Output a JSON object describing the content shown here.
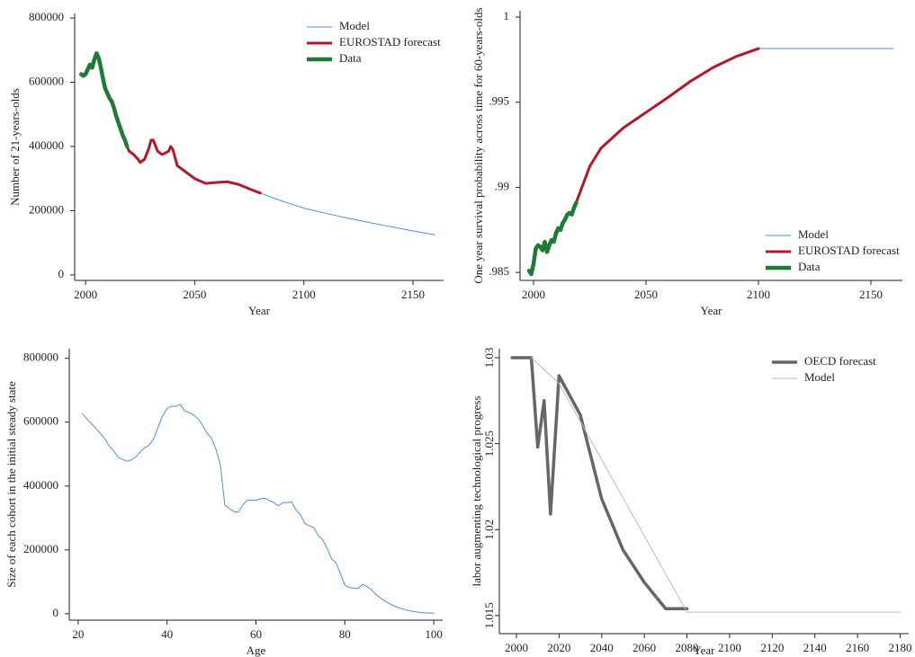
{
  "chart_data": [
    {
      "type": "line",
      "xlabel": "Year",
      "ylabel": "Number of 21-years-olds",
      "xlim": [
        1995,
        2164
      ],
      "ylim": [
        -17000,
        814000
      ],
      "xticks": [
        2000,
        2050,
        2100,
        2150
      ],
      "yticks": [
        0,
        200000,
        400000,
        600000,
        800000
      ],
      "legend": "upper right",
      "series": [
        {
          "name": "Model",
          "color": "#4f8fd6",
          "width": 1,
          "x": [
            2080,
            2090,
            2100,
            2110,
            2120,
            2130,
            2140,
            2150,
            2160
          ],
          "values": [
            255000,
            230000,
            208000,
            192000,
            177000,
            163000,
            150000,
            137000,
            125000
          ]
        },
        {
          "name": "EUROSTAD forecast",
          "color": "#b2182b",
          "width": 3,
          "x": [
            2019,
            2020,
            2022,
            2024,
            2025,
            2027,
            2029,
            2030,
            2031,
            2033,
            2035,
            2036,
            2038,
            2039,
            2040,
            2041,
            2042,
            2045,
            2050,
            2055,
            2060,
            2065,
            2070,
            2075,
            2080
          ],
          "values": [
            400000,
            385000,
            375000,
            360000,
            350000,
            360000,
            395000,
            420000,
            420000,
            385000,
            375000,
            378000,
            385000,
            400000,
            390000,
            365000,
            340000,
            325000,
            300000,
            285000,
            288000,
            290000,
            282000,
            268000,
            255000
          ]
        },
        {
          "name": "Data",
          "color": "#1e7b35",
          "width": 4.5,
          "x": [
            1998,
            1999,
            2000,
            2001,
            2002,
            2003,
            2004,
            2005,
            2006,
            2007,
            2008,
            2009,
            2010,
            2011,
            2012,
            2013,
            2014,
            2015,
            2016,
            2017,
            2018,
            2019
          ],
          "values": [
            625000,
            620000,
            625000,
            640000,
            655000,
            645000,
            670000,
            690000,
            675000,
            645000,
            610000,
            580000,
            565000,
            550000,
            540000,
            520000,
            495000,
            475000,
            455000,
            435000,
            420000,
            400000
          ]
        }
      ]
    },
    {
      "type": "line",
      "xlabel": "Year",
      "ylabel": "One year survival probability across time for 60-years-olds",
      "xlim": [
        1994,
        2164
      ],
      "ylim": [
        0.98453,
        1.00037
      ],
      "xticks": [
        2000,
        2050,
        2100,
        2150
      ],
      "yticks": [
        {
          "value": 0.985,
          "label": ".985"
        },
        {
          "value": 0.99,
          "label": ".99"
        },
        {
          "value": 0.995,
          "label": ".995"
        },
        1
      ],
      "legend": "lower right",
      "series": [
        {
          "name": "Model",
          "color": "#4f8fd6",
          "width": 1,
          "x": [
            2100,
            2160
          ],
          "values": [
            0.99815,
            0.99815
          ]
        },
        {
          "name": "EUROSTAD forecast",
          "color": "#b2182b",
          "width": 3,
          "x": [
            2019,
            2025,
            2030,
            2040,
            2050,
            2060,
            2070,
            2080,
            2090,
            2100
          ],
          "values": [
            0.98912,
            0.99123,
            0.9923,
            0.9935,
            0.9944,
            0.9953,
            0.99625,
            0.99705,
            0.99768,
            0.99815
          ]
        },
        {
          "name": "Data",
          "color": "#1e7b35",
          "width": 4.5,
          "x": [
            1998,
            1999,
            2000,
            2001,
            2002,
            2003,
            2004,
            2005,
            2006,
            2007,
            2008,
            2009,
            2010,
            2011,
            2012,
            2013,
            2014,
            2015,
            2016,
            2017,
            2018,
            2019
          ],
          "values": [
            0.9851,
            0.9849,
            0.9855,
            0.9864,
            0.9866,
            0.9865,
            0.9863,
            0.9868,
            0.9862,
            0.9866,
            0.9869,
            0.9868,
            0.9873,
            0.9876,
            0.9875,
            0.9879,
            0.9881,
            0.9884,
            0.9885,
            0.9884,
            0.9888,
            0.9891
          ]
        }
      ]
    },
    {
      "type": "line",
      "xlabel": "Age",
      "ylabel": "Size of each cohort in the initial steady state",
      "xlim": [
        18,
        102
      ],
      "ylim": [
        -20000,
        830000
      ],
      "xticks": [
        20,
        40,
        60,
        80,
        100
      ],
      "yticks": [
        0,
        200000,
        400000,
        600000,
        800000
      ],
      "series": [
        {
          "color": "#4f8fd6",
          "width": 1,
          "x": [
            21,
            22,
            23,
            24,
            25,
            26,
            27,
            28,
            29,
            30,
            31,
            32,
            33,
            34,
            35,
            36,
            37,
            38,
            39,
            40,
            41,
            42,
            43,
            44,
            45,
            46,
            47,
            48,
            49,
            50,
            51,
            52,
            53,
            54,
            55,
            56,
            57,
            58,
            59,
            60,
            61,
            62,
            63,
            64,
            65,
            66,
            67,
            68,
            69,
            70,
            71,
            72,
            73,
            74,
            75,
            76,
            77,
            78,
            79,
            80,
            81,
            82,
            83,
            84,
            85,
            86,
            87,
            88,
            89,
            90,
            91,
            92,
            93,
            94,
            95,
            96,
            97,
            98,
            99,
            100
          ],
          "values": [
            626000,
            610000,
            595000,
            580000,
            565000,
            548000,
            525000,
            510000,
            490000,
            483000,
            478000,
            482000,
            492000,
            508000,
            520000,
            528000,
            548000,
            585000,
            620000,
            643000,
            650000,
            650000,
            655000,
            635000,
            630000,
            622000,
            610000,
            590000,
            565000,
            550000,
            515000,
            465000,
            340000,
            330000,
            320000,
            318000,
            340000,
            355000,
            356000,
            355000,
            360000,
            362000,
            355000,
            348000,
            338000,
            348000,
            348000,
            350000,
            325000,
            310000,
            283000,
            275000,
            270000,
            245000,
            232000,
            205000,
            172000,
            160000,
            125000,
            90000,
            82000,
            80000,
            80000,
            92000,
            85000,
            75000,
            60000,
            50000,
            40000,
            32000,
            25000,
            20000,
            15000,
            11000,
            8000,
            6000,
            4000,
            3000,
            2000,
            2000
          ]
        }
      ]
    },
    {
      "type": "line",
      "xlabel": "Year",
      "ylabel": "labor augmenting technological progress",
      "xlim": [
        1992,
        2184
      ],
      "ylim": [
        1.01395,
        1.03052
      ],
      "xticks": [
        2000,
        2020,
        2040,
        2060,
        2080,
        2100,
        2120,
        2140,
        2160,
        2180
      ],
      "yticks": [
        1.015,
        1.02,
        1.025,
        1.03
      ],
      "legend": "upper right",
      "ytick_rotation": -90,
      "series": [
        {
          "name": "OECD forecast",
          "color": "#666666",
          "width": 3.5,
          "x": [
            1998,
            2007,
            2010,
            2013,
            2016,
            2020,
            2030,
            2040,
            2050,
            2060,
            2070,
            2080
          ],
          "values": [
            1.03,
            1.03,
            1.0248,
            1.0275,
            1.0209,
            1.02895,
            1.02666,
            1.02179,
            1.01882,
            1.01693,
            1.0154,
            1.0154
          ]
        },
        {
          "name": "Model",
          "color": "#bbbbbb",
          "width": 1,
          "x": [
            2007,
            2020,
            2080,
            2180
          ],
          "values": [
            1.03,
            1.0285,
            1.0152,
            1.0152
          ]
        }
      ]
    }
  ]
}
